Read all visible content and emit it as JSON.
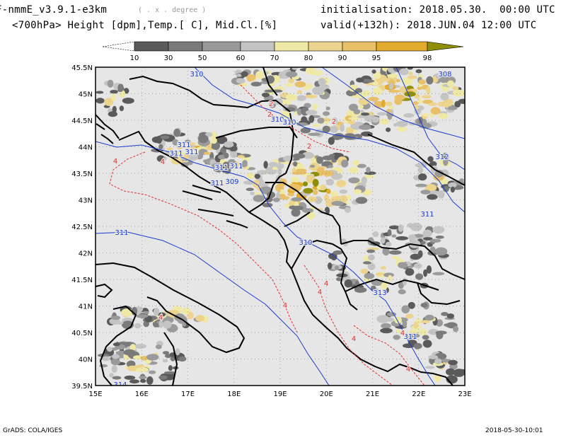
{
  "header": {
    "model": "F-nmmE_v3.9.1-e3km",
    "model_suffix": "( . x . degree )",
    "init_label": "initialisation: 2018.05.30.  00:00 UTC",
    "field_label": "<700hPa> Height [dpm],Temp.[ C], Mid.Cl.[%]",
    "valid_label": "valid(+132h): 2018.JUN.04 12:00 UTC"
  },
  "colorbar": {
    "ticks": [
      "10",
      "30",
      "50",
      "60",
      "70",
      "80",
      "90",
      "95",
      "98"
    ],
    "colors": [
      "#ffffff",
      "#5a5a5a",
      "#7a7a7a",
      "#9a9a9a",
      "#c4c4c4",
      "#eeeaa6",
      "#ecd48e",
      "#e8c068",
      "#e3ab2e",
      "#8f8f07"
    ]
  },
  "map": {
    "lat_labels": [
      "45.5N",
      "45N",
      "44.5N",
      "44N",
      "43.5N",
      "43N",
      "42.5N",
      "42N",
      "41.5N",
      "41N",
      "40.5N",
      "40N",
      "39.5N"
    ],
    "lon_labels": [
      "15E",
      "16E",
      "17E",
      "18E",
      "19E",
      "20E",
      "21E",
      "22E",
      "23E"
    ],
    "height_labels": [
      "310",
      "308",
      "310",
      "310",
      "311",
      "311",
      "311",
      "311",
      "311",
      "311",
      "309",
      "310",
      "312",
      "311",
      "311",
      "313",
      "311",
      "314"
    ],
    "temp_labels": [
      "2",
      "2",
      "2",
      "2",
      "4",
      "4",
      "4",
      "4",
      "4",
      "4",
      "4",
      "4",
      "4"
    ],
    "colors": {
      "bg": "#e6e6e6",
      "height": "#1a3cd0",
      "temp": "#e03030",
      "coast": "#000000",
      "grid": "#8c8c8c"
    }
  },
  "footer": {
    "left": "GrADS: COLA/IGES",
    "right": "2018-05-30-10:01"
  }
}
